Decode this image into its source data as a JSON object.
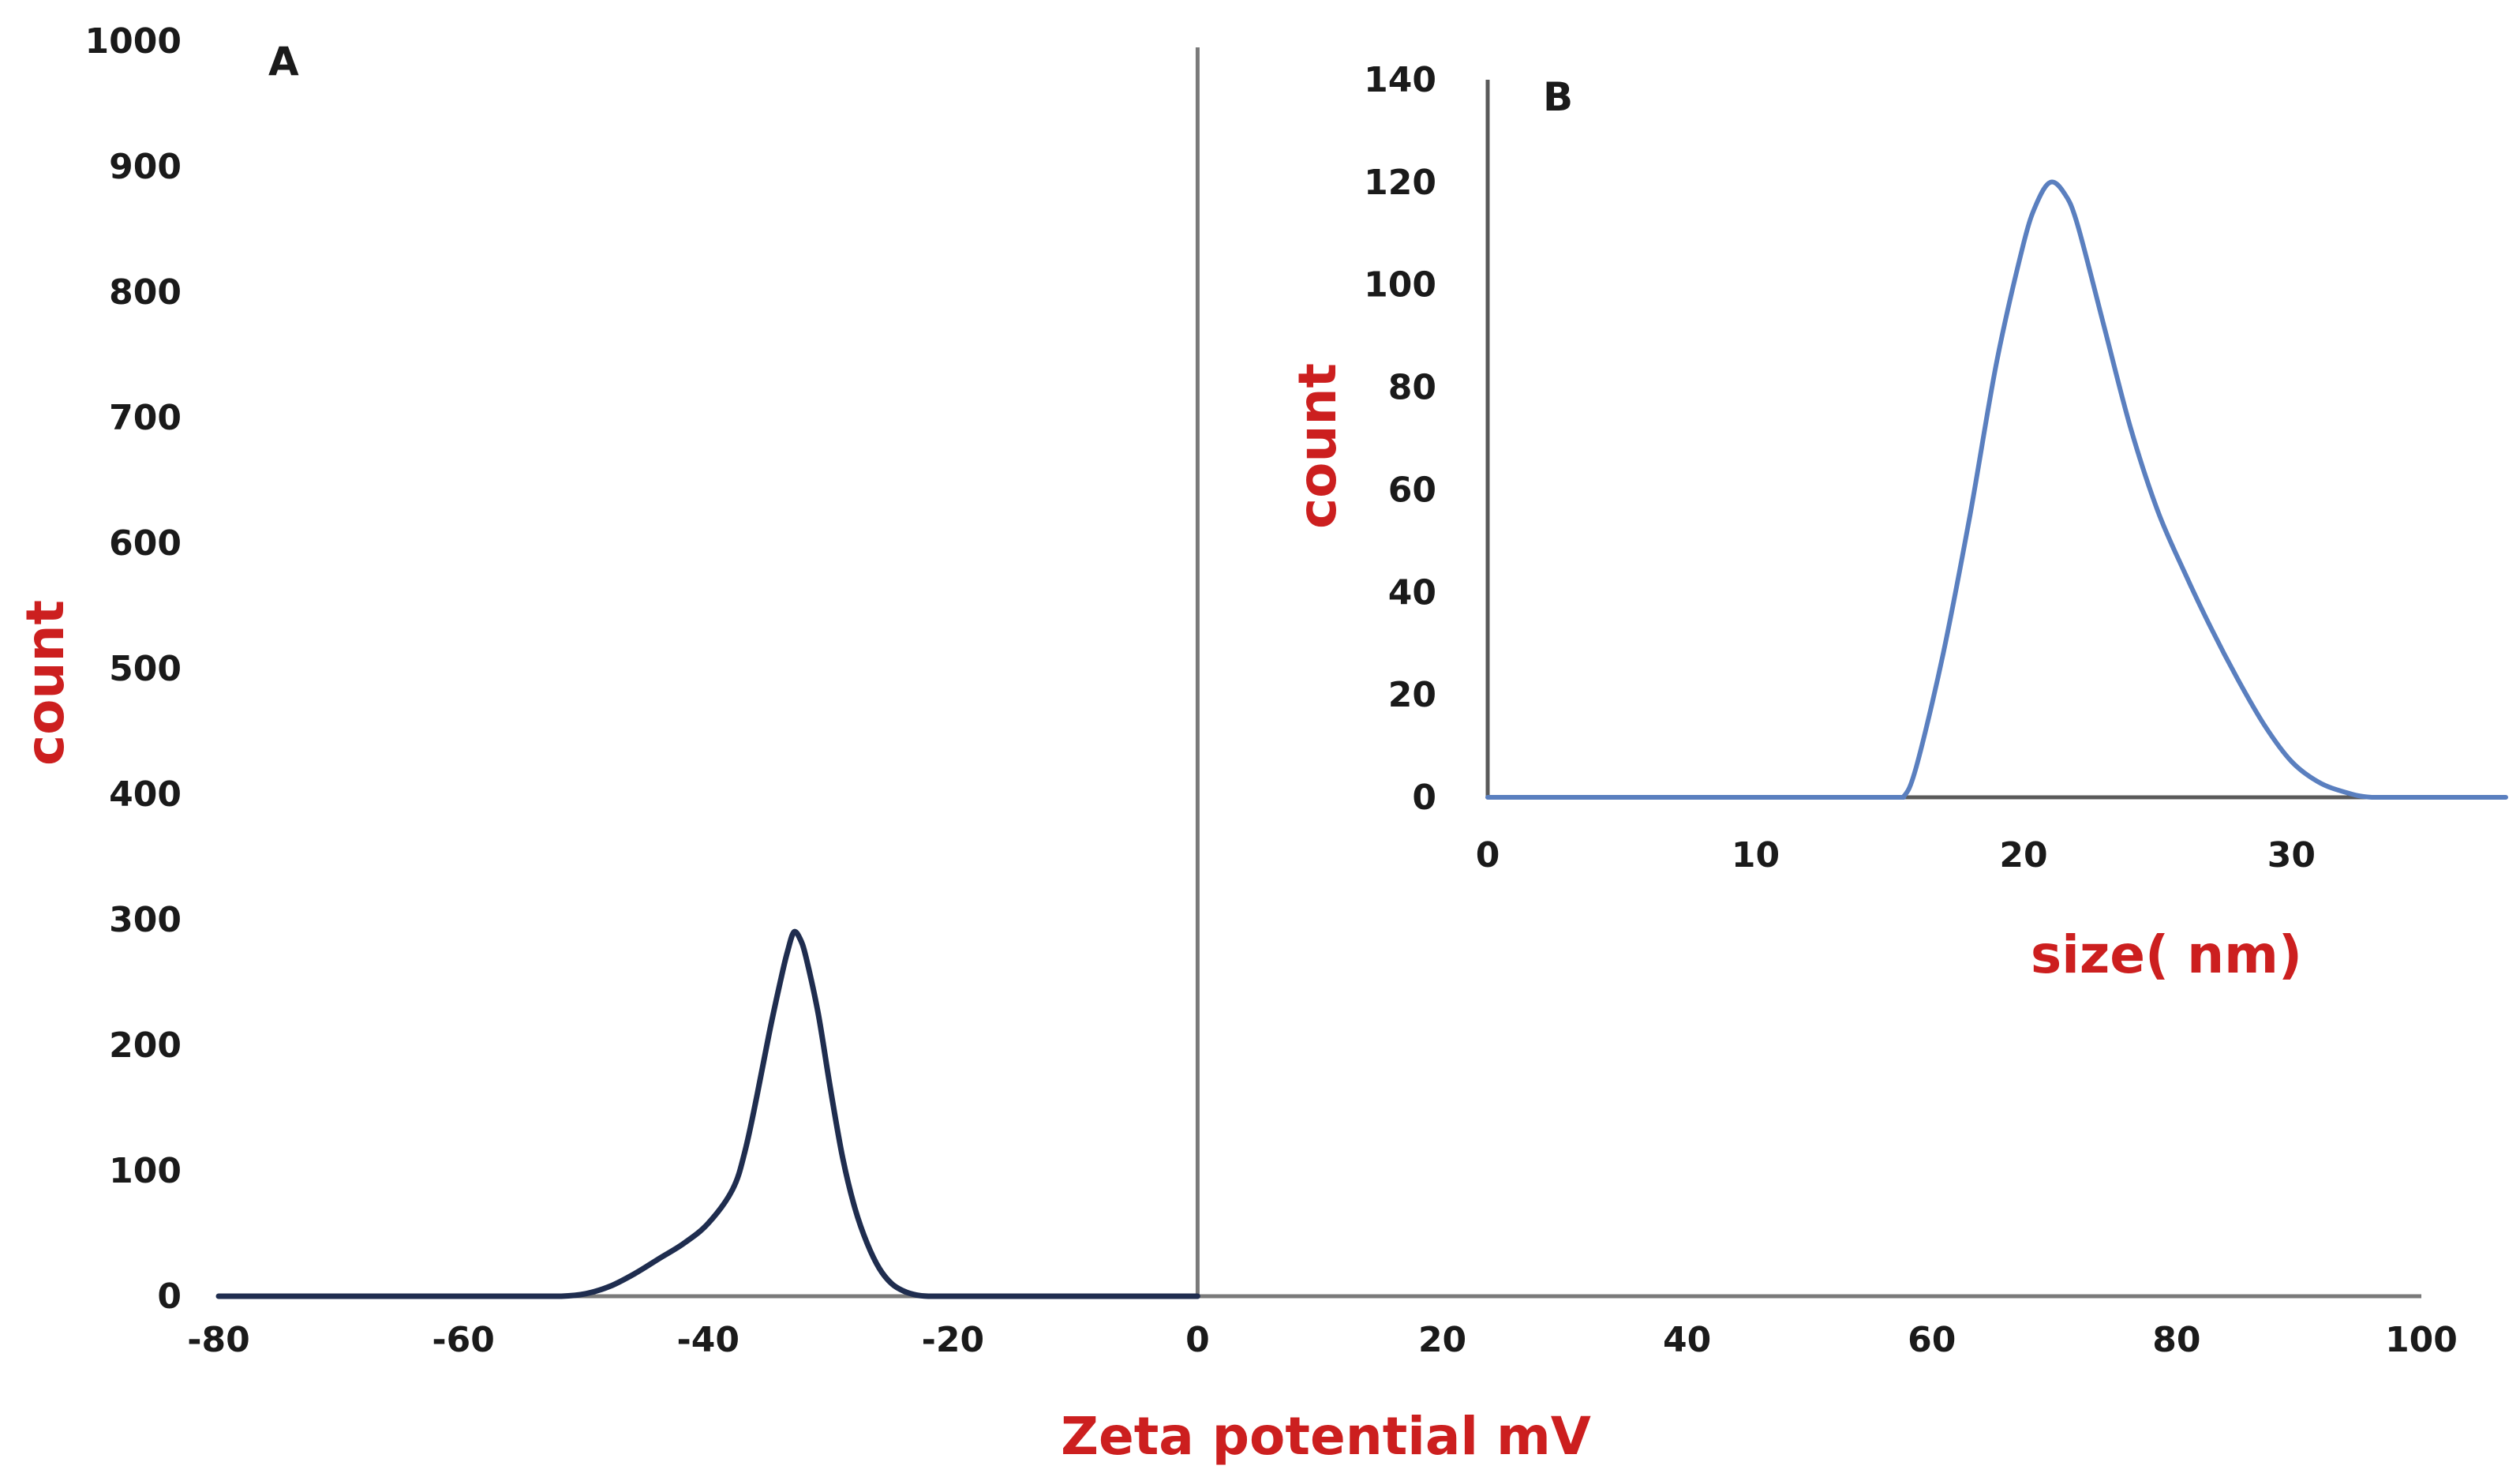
{
  "chart_data": [
    {
      "type": "line",
      "panel_label": "A",
      "title": "",
      "xlabel": "Zeta potential mV",
      "ylabel": "count",
      "xlim": [
        -80,
        100
      ],
      "ylim": [
        0,
        1000
      ],
      "xticks": [
        "-80",
        "-60",
        "-40",
        "-20",
        "0",
        "20",
        "40",
        "60",
        "80",
        "100"
      ],
      "yticks": [
        "0",
        "100",
        "200",
        "300",
        "400",
        "500",
        "600",
        "700",
        "800",
        "900",
        "1000"
      ],
      "grid": false,
      "legend": "none",
      "line_color": "#1f2d4f",
      "series": [
        {
          "x": [
            -80,
            -70,
            -60,
            -55,
            -52,
            -50,
            -48,
            -46,
            -44,
            -42,
            -40,
            -38,
            -37,
            -36,
            -35,
            -34,
            -33.5,
            -33,
            -32.5,
            -32,
            -31,
            -30,
            -29,
            -28,
            -27,
            -26,
            -25,
            -24,
            -23,
            -22,
            -20,
            -10,
            0
          ],
          "values": [
            0,
            0,
            0,
            0,
            0,
            2,
            8,
            18,
            30,
            42,
            58,
            85,
            115,
            160,
            210,
            255,
            275,
            290,
            285,
            270,
            225,
            165,
            110,
            70,
            42,
            22,
            10,
            4,
            1,
            0,
            0,
            0,
            0
          ]
        }
      ]
    },
    {
      "type": "line",
      "panel_label": "B",
      "title": "",
      "xlabel": "size( nm)",
      "ylabel": "count",
      "xlim": [
        0,
        38
      ],
      "ylim": [
        0,
        140
      ],
      "xticks": [
        "0",
        "10",
        "20",
        "30"
      ],
      "yticks": [
        "0",
        "20",
        "40",
        "60",
        "80",
        "100",
        "120",
        "140"
      ],
      "grid": false,
      "legend": "none",
      "line_color": "#5a7fbf",
      "series": [
        {
          "x": [
            0,
            5,
            10,
            15,
            15.5,
            16,
            17,
            18,
            19,
            20,
            20.5,
            21,
            21.5,
            22,
            23,
            24,
            25,
            26,
            27,
            28,
            29,
            30,
            31,
            32,
            33,
            35,
            38
          ],
          "values": [
            0,
            0,
            0,
            0,
            0,
            6,
            28,
            55,
            85,
            108,
            116,
            120,
            118,
            112,
            92,
            72,
            56,
            44,
            33,
            23,
            14,
            7,
            3,
            1,
            0,
            0,
            0
          ]
        }
      ]
    }
  ]
}
